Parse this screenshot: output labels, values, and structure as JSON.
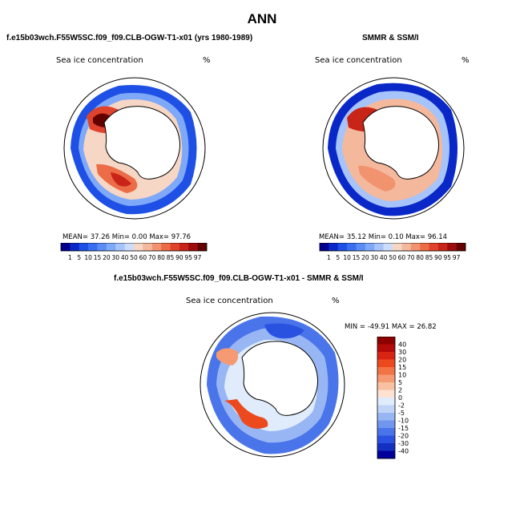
{
  "season": "ANN",
  "panels": [
    {
      "title": "f.e15b03wch.F55W5SC.f09_f09.CLB-OGW-T1-x01 (yrs 1980-1989)",
      "field_label": "Sea ice concentration",
      "units": "%",
      "stats": {
        "mean_label": "MEAN=",
        "mean": "37.26",
        "min_label": "Min=",
        "min": "0.00",
        "max_label": "Max=",
        "max": "97.76"
      }
    },
    {
      "title": "SMMR & SSM/I",
      "field_label": "Sea ice concentration",
      "units": "%",
      "stats": {
        "mean_label": "MEAN=",
        "mean": "35.12",
        "min_label": "Min=",
        "min": "0.10",
        "max_label": "Max=",
        "max": "96.14"
      }
    },
    {
      "title": "f.e15b03wch.F55W5SC.f09_f09.CLB-OGW-T1-x01 - SMMR & SSM/I",
      "field_label": "Sea ice concentration",
      "units": "%",
      "stats_line": "MIN = -49.91   MAX =  26.82"
    }
  ],
  "chart_data": [
    {
      "type": "heatmap",
      "projection": "south-polar-stereographic",
      "title": "f.e15b03wch.F55W5SC.f09_f09.CLB-OGW-T1-x01 (yrs 1980-1989)",
      "variable": "Sea ice concentration",
      "units": "%",
      "mean": 37.26,
      "min": 0.0,
      "max": 97.76,
      "colorbar_levels": [
        "1",
        "5",
        "10",
        "15",
        "20",
        "30",
        "40",
        "50",
        "60",
        "70",
        "80",
        "85",
        "90",
        "95",
        "97"
      ],
      "colorbar_colors": [
        "#00008f",
        "#0a28c8",
        "#1e50e6",
        "#3a6ef0",
        "#5a8cf5",
        "#7ea8f8",
        "#a6c4fa",
        "#cddcfb",
        "#f6d6c4",
        "#f4b89c",
        "#f29370",
        "#ec6c47",
        "#e0432b",
        "#c82417",
        "#9c0c0c",
        "#640000"
      ],
      "legend_position": "bottom"
    },
    {
      "type": "heatmap",
      "projection": "south-polar-stereographic",
      "title": "SMMR & SSM/I",
      "variable": "Sea ice concentration",
      "units": "%",
      "mean": 35.12,
      "min": 0.1,
      "max": 96.14,
      "colorbar_levels": [
        "1",
        "5",
        "10",
        "15",
        "20",
        "30",
        "40",
        "50",
        "60",
        "70",
        "80",
        "85",
        "90",
        "95",
        "97"
      ],
      "colorbar_colors": [
        "#00008f",
        "#0a28c8",
        "#1e50e6",
        "#3a6ef0",
        "#5a8cf5",
        "#7ea8f8",
        "#a6c4fa",
        "#cddcfb",
        "#f6d6c4",
        "#f4b89c",
        "#f29370",
        "#ec6c47",
        "#e0432b",
        "#c82417",
        "#9c0c0c",
        "#640000"
      ],
      "legend_position": "bottom"
    },
    {
      "type": "heatmap",
      "projection": "south-polar-stereographic",
      "title": "f.e15b03wch.F55W5SC.f09_f09.CLB-OGW-T1-x01 - SMMR & SSM/I",
      "variable": "Sea ice concentration",
      "units": "%",
      "min": -49.91,
      "max": 26.82,
      "colorbar_levels": [
        "40",
        "30",
        "20",
        "15",
        "10",
        "5",
        "2",
        "0",
        "-2",
        "-5",
        "-10",
        "-15",
        "-20",
        "-30",
        "-40"
      ],
      "colorbar_colors": [
        "#8c0000",
        "#b30a0a",
        "#d82412",
        "#ec4a1e",
        "#f27446",
        "#f59a72",
        "#f8c2a2",
        "#fde2d2",
        "#e0ecfb",
        "#c0d4f8",
        "#98b6f4",
        "#7096ef",
        "#4a74ea",
        "#2a52e0",
        "#1430c0",
        "#00009a"
      ],
      "legend_position": "right"
    }
  ]
}
